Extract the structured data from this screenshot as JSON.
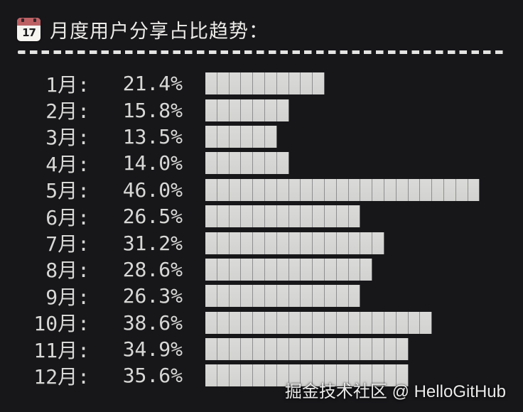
{
  "header": {
    "title": "月度用户分享占比趋势：",
    "calendar_icon": {
      "day": "17"
    }
  },
  "chart_data": {
    "type": "bar",
    "orientation": "horizontal",
    "title": "月度用户分享占比趋势",
    "categories": [
      "1月",
      "2月",
      "3月",
      "4月",
      "5月",
      "6月",
      "7月",
      "8月",
      "9月",
      "10月",
      "11月",
      "12月"
    ],
    "values": [
      21.4,
      15.8,
      13.5,
      14.0,
      46.0,
      26.5,
      31.2,
      28.6,
      26.3,
      38.6,
      34.9,
      35.6
    ],
    "unit": "%",
    "label_separator": ":",
    "percent_per_segment": 2,
    "xlim": [
      0,
      50
    ],
    "bar_color": "#d5d5d3",
    "segment_seam_color": "#8e8e90",
    "background_color": "#17171a",
    "text_color": "#d8d8d6",
    "grid": false,
    "legend": false
  },
  "watermark": {
    "text": "掘金技术社区 @ HelloGitHub"
  }
}
